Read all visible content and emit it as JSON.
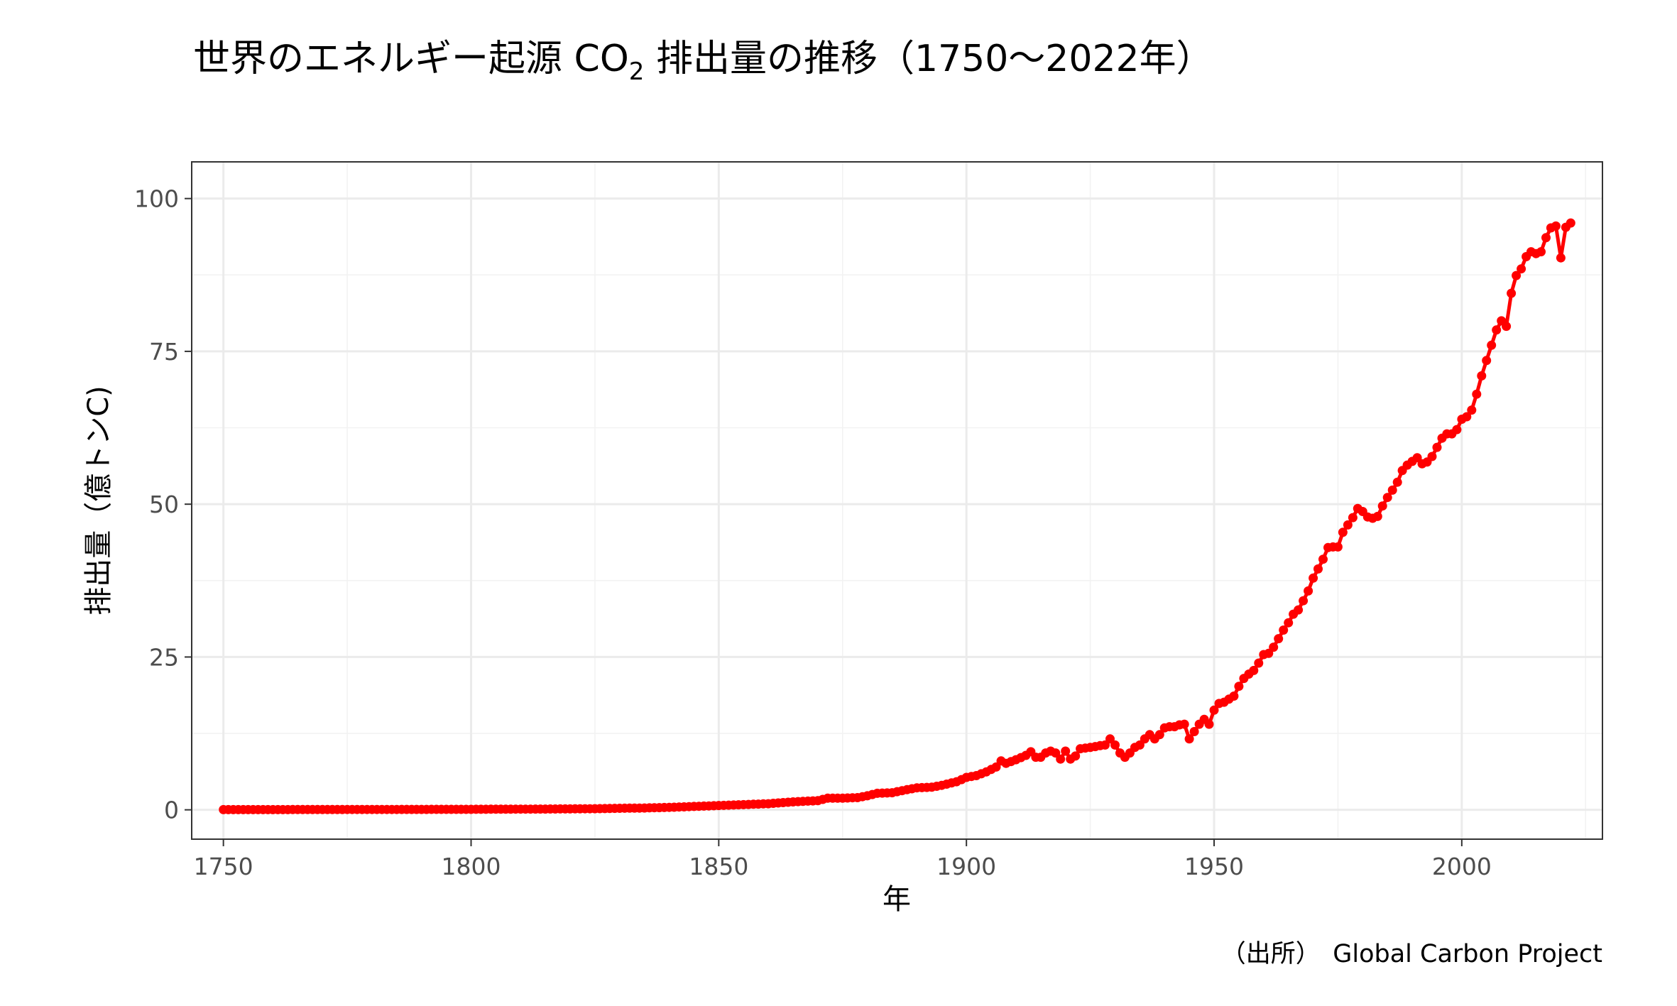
{
  "chart_data": {
    "type": "line",
    "title": "世界のエネルギー起源 CO₂ 排出量の推移（1750〜2022年）",
    "title_parts": {
      "before": "世界のエネルギー起源 CO",
      "sub": "2",
      "after": " 排出量の推移（1750〜2022年）"
    },
    "xlabel": "年",
    "ylabel": "排出量（億トンC)",
    "source": "（出所）　Global Carbon Project",
    "xlim": [
      1743.6,
      2028.4
    ],
    "ylim": [
      -4.8,
      106.0
    ],
    "x_ticks": [
      1750,
      1800,
      1850,
      1900,
      1950,
      2000
    ],
    "y_ticks": [
      0,
      25,
      50,
      75,
      100
    ],
    "grid": true,
    "legend": "none",
    "color": "#ff0000",
    "marker": "point",
    "series": [
      {
        "points": [
          [
            1750,
            0.03
          ],
          [
            1755,
            0.03
          ],
          [
            1760,
            0.03
          ],
          [
            1765,
            0.04
          ],
          [
            1770,
            0.04
          ],
          [
            1775,
            0.05
          ],
          [
            1780,
            0.05
          ],
          [
            1785,
            0.06
          ],
          [
            1790,
            0.07
          ],
          [
            1795,
            0.08
          ],
          [
            1800,
            0.08
          ],
          [
            1805,
            0.1
          ],
          [
            1810,
            0.11
          ],
          [
            1815,
            0.13
          ],
          [
            1820,
            0.15
          ],
          [
            1825,
            0.18
          ],
          [
            1830,
            0.25
          ],
          [
            1835,
            0.3
          ],
          [
            1840,
            0.4
          ],
          [
            1845,
            0.55
          ],
          [
            1850,
            0.7
          ],
          [
            1855,
            0.85
          ],
          [
            1860,
            1.0
          ],
          [
            1865,
            1.3
          ],
          [
            1870,
            1.5
          ],
          [
            1872,
            1.9
          ],
          [
            1875,
            1.9
          ],
          [
            1878,
            2.0
          ],
          [
            1880,
            2.3
          ],
          [
            1882,
            2.7
          ],
          [
            1885,
            2.8
          ],
          [
            1888,
            3.3
          ],
          [
            1890,
            3.6
          ],
          [
            1893,
            3.7
          ],
          [
            1895,
            4.0
          ],
          [
            1898,
            4.6
          ],
          [
            1900,
            5.3
          ],
          [
            1902,
            5.6
          ],
          [
            1904,
            6.2
          ],
          [
            1906,
            7.0
          ],
          [
            1907,
            8.0
          ],
          [
            1908,
            7.6
          ],
          [
            1910,
            8.2
          ],
          [
            1912,
            8.9
          ],
          [
            1913,
            9.5
          ],
          [
            1914,
            8.6
          ],
          [
            1915,
            8.6
          ],
          [
            1916,
            9.3
          ],
          [
            1917,
            9.6
          ],
          [
            1918,
            9.3
          ],
          [
            1919,
            8.3
          ],
          [
            1920,
            9.6
          ],
          [
            1921,
            8.3
          ],
          [
            1922,
            8.8
          ],
          [
            1923,
            10.0
          ],
          [
            1925,
            10.2
          ],
          [
            1927,
            10.5
          ],
          [
            1928,
            10.6
          ],
          [
            1929,
            11.6
          ],
          [
            1930,
            10.6
          ],
          [
            1931,
            9.3
          ],
          [
            1932,
            8.6
          ],
          [
            1933,
            9.3
          ],
          [
            1934,
            10.2
          ],
          [
            1935,
            10.6
          ],
          [
            1936,
            11.6
          ],
          [
            1937,
            12.3
          ],
          [
            1938,
            11.6
          ],
          [
            1939,
            12.3
          ],
          [
            1940,
            13.4
          ],
          [
            1941,
            13.6
          ],
          [
            1942,
            13.6
          ],
          [
            1943,
            13.9
          ],
          [
            1944,
            14.0
          ],
          [
            1945,
            11.6
          ],
          [
            1946,
            12.8
          ],
          [
            1947,
            14.0
          ],
          [
            1948,
            14.8
          ],
          [
            1949,
            14.0
          ],
          [
            1950,
            16.3
          ],
          [
            1951,
            17.4
          ],
          [
            1952,
            17.6
          ],
          [
            1953,
            18.1
          ],
          [
            1954,
            18.6
          ],
          [
            1955,
            20.2
          ],
          [
            1956,
            21.5
          ],
          [
            1957,
            22.2
          ],
          [
            1958,
            22.8
          ],
          [
            1959,
            24.0
          ],
          [
            1960,
            25.4
          ],
          [
            1961,
            25.6
          ],
          [
            1962,
            26.6
          ],
          [
            1963,
            28.0
          ],
          [
            1964,
            29.4
          ],
          [
            1965,
            30.6
          ],
          [
            1966,
            32.0
          ],
          [
            1967,
            32.7
          ],
          [
            1968,
            34.2
          ],
          [
            1969,
            35.8
          ],
          [
            1970,
            37.9
          ],
          [
            1971,
            39.4
          ],
          [
            1972,
            41.0
          ],
          [
            1973,
            42.9
          ],
          [
            1974,
            43.0
          ],
          [
            1975,
            43.0
          ],
          [
            1976,
            45.4
          ],
          [
            1977,
            46.6
          ],
          [
            1978,
            47.8
          ],
          [
            1979,
            49.3
          ],
          [
            1980,
            48.8
          ],
          [
            1981,
            47.9
          ],
          [
            1982,
            47.7
          ],
          [
            1983,
            48.0
          ],
          [
            1984,
            49.7
          ],
          [
            1985,
            51.1
          ],
          [
            1986,
            52.3
          ],
          [
            1987,
            53.6
          ],
          [
            1988,
            55.5
          ],
          [
            1989,
            56.4
          ],
          [
            1990,
            57.0
          ],
          [
            1991,
            57.6
          ],
          [
            1992,
            56.6
          ],
          [
            1993,
            56.9
          ],
          [
            1994,
            57.8
          ],
          [
            1995,
            59.3
          ],
          [
            1996,
            60.8
          ],
          [
            1997,
            61.5
          ],
          [
            1998,
            61.5
          ],
          [
            1999,
            62.2
          ],
          [
            2000,
            63.9
          ],
          [
            2001,
            64.3
          ],
          [
            2002,
            65.4
          ],
          [
            2003,
            68.0
          ],
          [
            2004,
            71.0
          ],
          [
            2005,
            73.5
          ],
          [
            2006,
            76.0
          ],
          [
            2007,
            78.5
          ],
          [
            2008,
            80.0
          ],
          [
            2009,
            79.1
          ],
          [
            2010,
            84.5
          ],
          [
            2011,
            87.4
          ],
          [
            2012,
            88.5
          ],
          [
            2013,
            90.5
          ],
          [
            2014,
            91.3
          ],
          [
            2015,
            91.0
          ],
          [
            2016,
            91.3
          ],
          [
            2017,
            93.6
          ],
          [
            2018,
            95.2
          ],
          [
            2019,
            95.5
          ],
          [
            2020,
            90.3
          ],
          [
            2021,
            95.3
          ],
          [
            2022,
            96.0
          ]
        ]
      }
    ]
  }
}
